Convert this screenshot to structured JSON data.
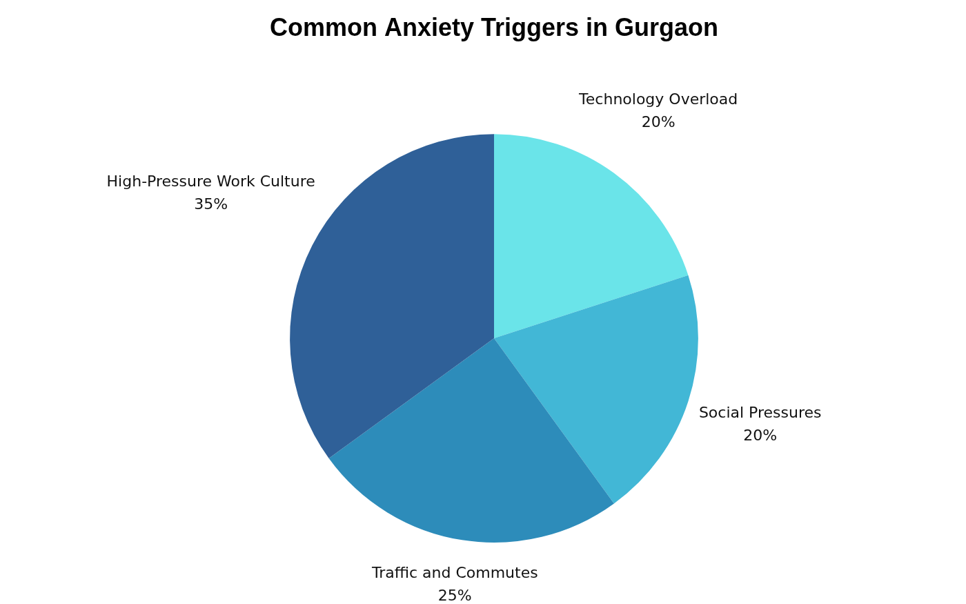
{
  "chart_data": {
    "type": "pie",
    "title": "Common Anxiety Triggers in Gurgaon",
    "categories": [
      "Technology Overload",
      "Social Pressures",
      "Traffic and Commutes",
      "High-Pressure Work Culture"
    ],
    "values": [
      20,
      20,
      25,
      35
    ],
    "value_labels": [
      "20%",
      "20%",
      "25%",
      "35%"
    ],
    "colors": [
      "#6ae4e9",
      "#42b7d6",
      "#2d8cba",
      "#2f6098"
    ],
    "data_labels": true
  }
}
